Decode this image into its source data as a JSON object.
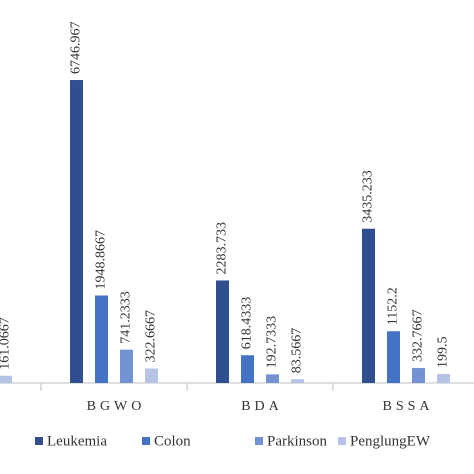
{
  "chart_data": {
    "type": "bar",
    "categories": [
      null,
      "BGWO",
      "BDA",
      "BSSA"
    ],
    "series": [
      {
        "name": "Leukemia",
        "color": "#2f4f8f",
        "values": [
          null,
          6746.967,
          2283.733,
          3435.233
        ]
      },
      {
        "name": "Colon",
        "color": "#4472c4",
        "values": [
          null,
          1948.8667,
          618.4333,
          1152.2
        ]
      },
      {
        "name": "Parkinson",
        "color": "#7392d2",
        "values": [
          null,
          741.2333,
          192.7333,
          332.7667
        ]
      },
      {
        "name": "PenglungEW",
        "color": "#b4c3e6",
        "values": [
          161.0667,
          322.6667,
          83.5667,
          199.5
        ]
      }
    ],
    "ylim": [
      0,
      7400
    ],
    "legend": "bottom"
  }
}
